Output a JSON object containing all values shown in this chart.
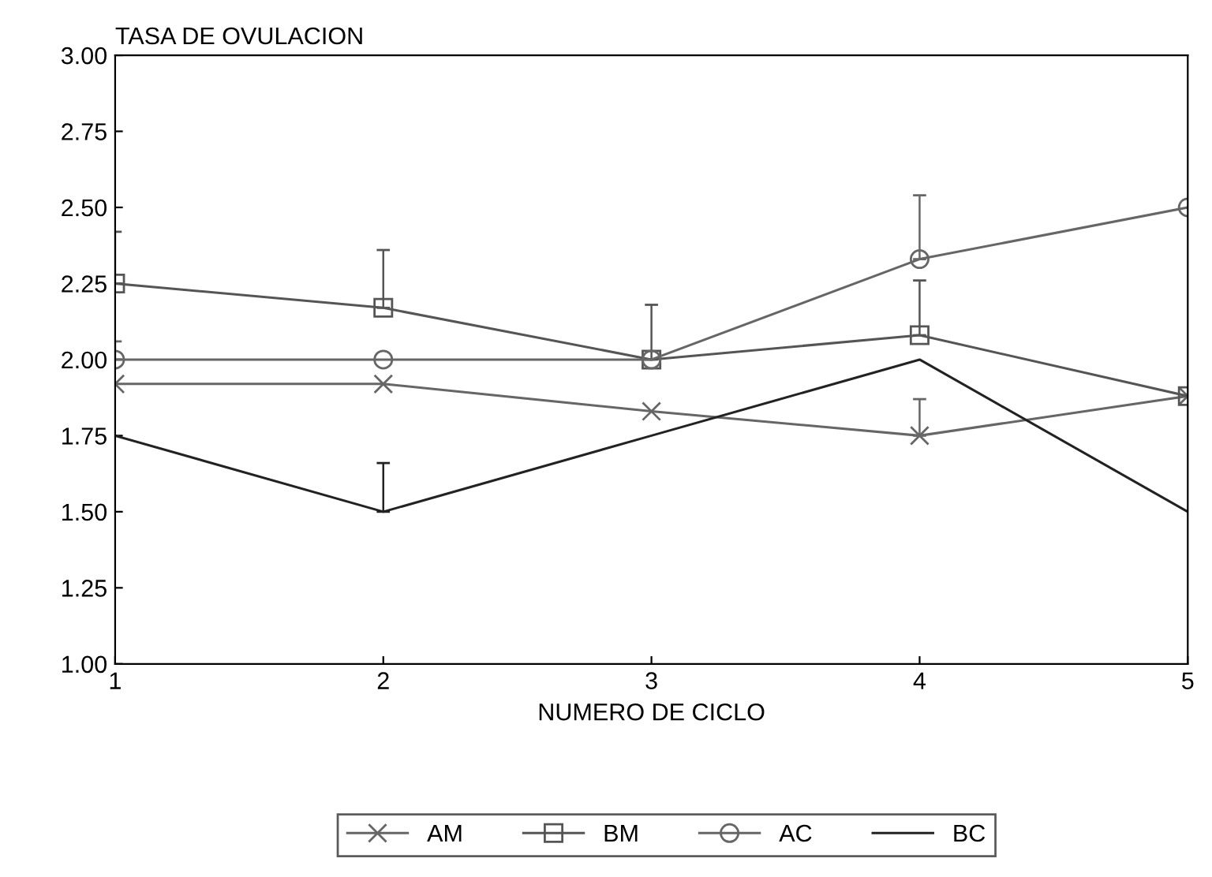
{
  "chart_data": {
    "type": "line",
    "ylabel": "TASA DE OVULACION",
    "xlabel": "NUMERO DE CICLO",
    "x": [
      1,
      2,
      3,
      4,
      5
    ],
    "xlim": [
      1,
      5
    ],
    "xticks": [
      1,
      2,
      3,
      4,
      5
    ],
    "ylim": [
      1.0,
      3.0
    ],
    "yticks": [
      {
        "value": 1.0,
        "label": "1.00"
      },
      {
        "value": 1.25,
        "label": "1.25"
      },
      {
        "value": 1.5,
        "label": "1.50"
      },
      {
        "value": 1.75,
        "label": "1.75"
      },
      {
        "value": 2.0,
        "label": "2.00"
      },
      {
        "value": 2.25,
        "label": "2.25"
      },
      {
        "value": 2.5,
        "label": "2.50"
      },
      {
        "value": 2.75,
        "label": "2.75"
      },
      {
        "value": 3.0,
        "label": "3.00"
      }
    ],
    "legend": "bottom",
    "grid": false,
    "series": [
      {
        "name": "AM",
        "color": "#666666",
        "marker": "cross",
        "values": [
          1.92,
          1.92,
          1.83,
          1.75,
          1.88
        ],
        "errors": [
          null,
          null,
          null,
          [
            1.75,
            1.87
          ],
          null
        ]
      },
      {
        "name": "BM",
        "color": "#555555",
        "marker": "square",
        "values": [
          2.25,
          2.17,
          2.0,
          2.08,
          1.88
        ],
        "errors": [
          [
            2.25,
            2.42
          ],
          [
            2.17,
            2.36
          ],
          [
            2.0,
            2.18
          ],
          [
            2.08,
            2.26
          ],
          null
        ]
      },
      {
        "name": "AC",
        "color": "#666666",
        "marker": "circle",
        "values": [
          2.0,
          2.0,
          2.0,
          2.33,
          2.5
        ],
        "errors": [
          [
            2.0,
            2.06
          ],
          null,
          null,
          [
            2.33,
            2.54
          ],
          null
        ]
      },
      {
        "name": "BC",
        "color": "#222222",
        "marker": "none",
        "values": [
          1.75,
          1.5,
          1.75,
          2.0,
          1.5
        ],
        "errors": [
          null,
          [
            1.5,
            1.66
          ],
          null,
          null,
          null
        ]
      }
    ]
  }
}
